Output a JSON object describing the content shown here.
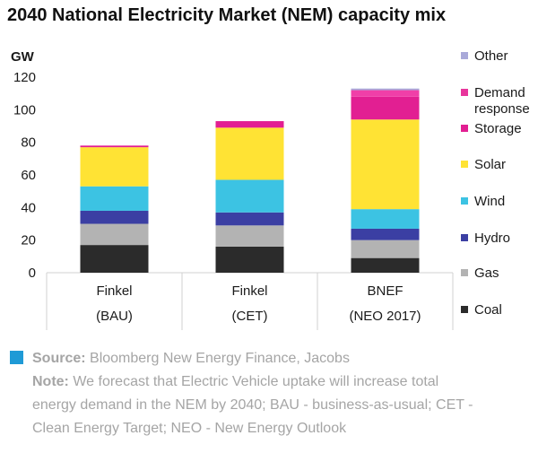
{
  "chart_data": {
    "type": "bar",
    "stacked": true,
    "title": "2040 National Electricity Market (NEM) capacity mix",
    "ylabel": "GW",
    "ylim": [
      0,
      120
    ],
    "yticks": [
      0,
      20,
      40,
      60,
      80,
      100,
      120
    ],
    "grid": false,
    "legend_position": "right",
    "categories": [
      {
        "line1": "Finkel",
        "line2": "(BAU)"
      },
      {
        "line1": "Finkel",
        "line2": "(CET)"
      },
      {
        "line1": "BNEF",
        "line2": "(NEO 2017)"
      }
    ],
    "series": [
      {
        "name": "Coal",
        "color": "#2b2b2b",
        "values": [
          17,
          16,
          9
        ]
      },
      {
        "name": "Gas",
        "color": "#b3b3b3",
        "values": [
          13,
          13,
          11
        ]
      },
      {
        "name": "Hydro",
        "color": "#3b3fa3",
        "values": [
          8,
          8,
          7
        ]
      },
      {
        "name": "Wind",
        "color": "#3cc3e3",
        "values": [
          15,
          20,
          12
        ]
      },
      {
        "name": "Solar",
        "color": "#ffe334",
        "values": [
          24,
          32,
          55
        ]
      },
      {
        "name": "Storage",
        "color": "#e21f92",
        "values": [
          1,
          4,
          14
        ]
      },
      {
        "name": "Demand response",
        "color": "#f03fa8",
        "values": [
          0,
          0,
          4
        ]
      },
      {
        "name": "Other",
        "color": "#a9a9d9",
        "values": [
          0,
          0,
          1
        ]
      }
    ]
  },
  "legend": [
    {
      "label": "Other",
      "color": "#a9a9d9"
    },
    {
      "label": "Demand",
      "label2": "response",
      "color": "#e8359c"
    },
    {
      "label": "Storage",
      "color": "#e21f92"
    },
    {
      "label": "Solar",
      "color": "#ffe334"
    },
    {
      "label": "Wind",
      "color": "#3cc3e3"
    },
    {
      "label": "Hydro",
      "color": "#3b3fa3"
    },
    {
      "label": "Gas",
      "color": "#b3b3b3"
    },
    {
      "label": "Coal",
      "color": "#2b2b2b"
    }
  ],
  "footer": {
    "source_label": "Source:",
    "source_text": " Bloomberg New Energy Finance, Jacobs",
    "note_label": "Note:",
    "note_line1": " We forecast that Electric Vehicle uptake will increase total",
    "note_line2": "energy demand in the NEM by 2040; BAU - business-as-usual; CET -",
    "note_line3": "Clean Energy Target; NEO - New Energy Outlook",
    "accent_color": "#1f9ad6"
  }
}
